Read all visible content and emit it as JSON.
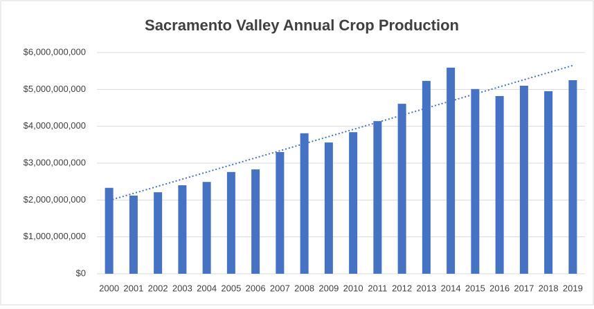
{
  "chart_data": {
    "type": "bar",
    "title": "Sacramento Valley Annual Crop Production",
    "categories": [
      "2000",
      "2001",
      "2002",
      "2003",
      "2004",
      "2005",
      "2006",
      "2007",
      "2008",
      "2009",
      "2010",
      "2011",
      "2012",
      "2013",
      "2014",
      "2015",
      "2016",
      "2017",
      "2018",
      "2019"
    ],
    "values": [
      2330000000,
      2120000000,
      2210000000,
      2400000000,
      2490000000,
      2760000000,
      2830000000,
      3300000000,
      3810000000,
      3560000000,
      3840000000,
      4140000000,
      4610000000,
      5230000000,
      5590000000,
      5010000000,
      4820000000,
      5100000000,
      4950000000,
      5250000000
    ],
    "color": "#4472c4",
    "ylim": [
      0,
      6000000000
    ],
    "yticks": [
      {
        "value": 0,
        "label": "$0"
      },
      {
        "value": 1000000000,
        "label": "$1,000,000,000"
      },
      {
        "value": 2000000000,
        "label": "$2,000,000,000"
      },
      {
        "value": 3000000000,
        "label": "$3,000,000,000"
      },
      {
        "value": 4000000000,
        "label": "$4,000,000,000"
      },
      {
        "value": 5000000000,
        "label": "$5,000,000,000"
      },
      {
        "value": 6000000000,
        "label": "$6,000,000,000"
      }
    ],
    "grid": true,
    "trendline": "linear",
    "trendline_color": "#4472c4"
  }
}
